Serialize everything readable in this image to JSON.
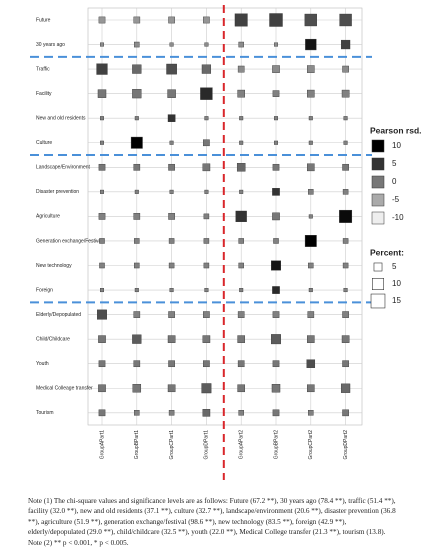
{
  "chart_data": {
    "type": "balloon",
    "categories": [
      "Future",
      "30 years ago",
      "Traffic",
      "Facility",
      "New and old residents",
      "Culture",
      "Landscape/Environment",
      "Disaster prevention",
      "Agriculture",
      "Generation exchange/Festival",
      "New technology",
      "Foreign",
      "Elderly/Depopulated",
      "Child/Childcare",
      "Youth",
      "Medical Colleage transfer",
      "Tourism"
    ],
    "series": [
      {
        "name": "GroupAPart1",
        "values": [
          3,
          1,
          9,
          5,
          1,
          1,
          3,
          1,
          3,
          2,
          2,
          1,
          7,
          4,
          3,
          4,
          3
        ],
        "residuals": [
          -3,
          -2,
          4,
          0,
          -1,
          -1,
          0,
          -1,
          -1,
          -1,
          -1,
          -1,
          3,
          0,
          0,
          0,
          0
        ]
      },
      {
        "name": "GroupBPart1",
        "values": [
          3,
          2,
          6,
          6,
          1,
          10,
          3,
          1,
          3,
          2,
          2,
          1,
          3,
          6,
          3,
          5,
          2
        ],
        "residuals": [
          -3,
          -2,
          1,
          0,
          -1,
          10,
          0,
          -1,
          -1,
          -1,
          -1,
          -1,
          -1,
          2,
          0,
          0,
          -1
        ]
      },
      {
        "name": "GroupCPart1",
        "values": [
          3,
          1,
          8,
          5,
          4,
          1,
          3,
          1,
          3,
          2,
          2,
          1,
          3,
          4,
          3,
          4,
          2
        ],
        "residuals": [
          -3,
          -2,
          3,
          0,
          5,
          -1,
          0,
          -1,
          -1,
          -1,
          -1,
          -1,
          -1,
          0,
          0,
          0,
          -1
        ]
      },
      {
        "name": "GroupDPart1",
        "values": [
          3,
          1,
          6,
          11,
          1,
          3,
          4,
          1,
          2,
          2,
          2,
          1,
          3,
          4,
          3,
          7,
          4
        ],
        "residuals": [
          -3,
          -2,
          1,
          6,
          -1,
          0,
          0,
          -1,
          -1,
          -1,
          -1,
          -1,
          -1,
          0,
          0,
          2,
          1
        ]
      },
      {
        "name": "GroupAPart2",
        "values": [
          12,
          2,
          3,
          4,
          1,
          1,
          5,
          1,
          9,
          2,
          2,
          1,
          3,
          4,
          3,
          4,
          2
        ],
        "residuals": [
          4,
          -2,
          -2,
          -1,
          -1,
          -1,
          1,
          -1,
          5,
          -1,
          -1,
          -1,
          -1,
          0,
          0,
          0,
          -1
        ]
      },
      {
        "name": "GroupBPart2",
        "values": [
          13,
          1,
          4,
          3,
          1,
          1,
          3,
          4,
          4,
          2,
          7,
          4,
          3,
          7,
          3,
          5,
          3
        ],
        "residuals": [
          4,
          -2,
          -2,
          -1,
          -1,
          -1,
          0,
          5,
          0,
          -1,
          8,
          6,
          -1,
          2,
          0,
          0,
          0
        ]
      },
      {
        "name": "GroupCPart2",
        "values": [
          11,
          9,
          4,
          4,
          1,
          1,
          4,
          2,
          1,
          10,
          2,
          1,
          3,
          4,
          5,
          4,
          2
        ],
        "residuals": [
          3,
          8,
          -2,
          -1,
          -1,
          -1,
          0,
          -1,
          -1,
          10,
          -1,
          -1,
          -1,
          0,
          3,
          0,
          -1
        ]
      },
      {
        "name": "GroupDPart2",
        "values": [
          11,
          6,
          3,
          4,
          1,
          1,
          3,
          2,
          12,
          2,
          2,
          1,
          3,
          4,
          3,
          6,
          3
        ],
        "residuals": [
          3,
          4,
          -2,
          -1,
          -1,
          -1,
          0,
          -1,
          9,
          -1,
          -1,
          -1,
          -1,
          0,
          0,
          1,
          0
        ]
      }
    ],
    "color_legend_title": "Pearson rsd.",
    "residual_ticks": [
      10,
      5,
      0,
      -5,
      -10
    ],
    "residual_colors": [
      "#000000",
      "#333333",
      "#777777",
      "#aaaaaa",
      "#eeeeee"
    ],
    "size_legend_title": "Percent:",
    "size_ticks": [
      5,
      10,
      15
    ],
    "note": "Note (1) The chi-square values and significance levels are as follows: Future (67.2 **), 30 years ago (78.4 **), traffic (51.4 **), facility (32.0 **), new and old residents (37.1 **), culture (32.7 **), landscape/environment (20.6 **), disaster prevention (36.8 **), agriculture (51.9 **), generation exchange/festival (98.6 **), new technology (83.5 **), foreign (42.9 **), elderly/depopulated (29.0 **), child/childcare (32.5 **), youth (22.0 **), Medical College transfer (21.3 **), tourism (13.8). Note (2) ** p < 0.001, * p < 0.005."
  }
}
